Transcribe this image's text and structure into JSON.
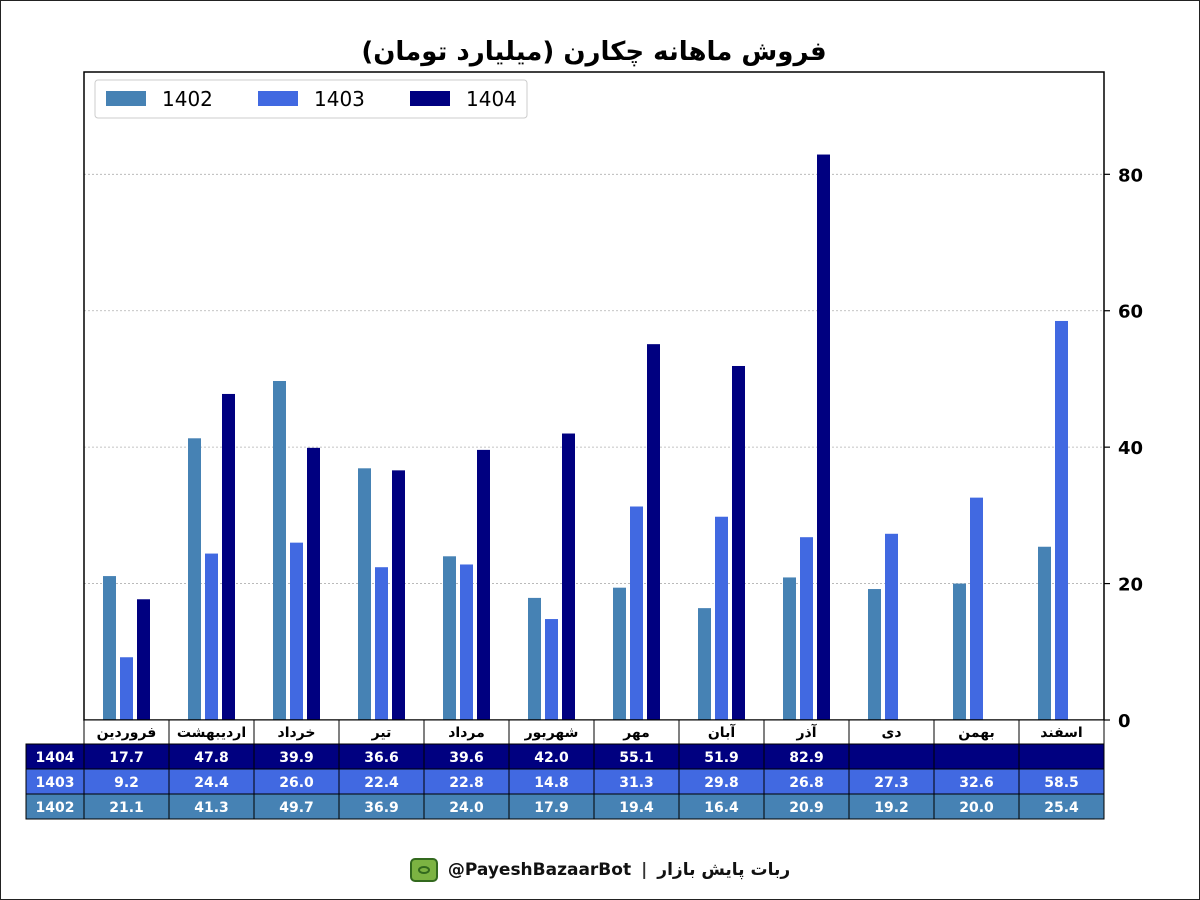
{
  "chart_data": {
    "type": "bar",
    "title": "فروش ماهانه چکارن (میلیارد تومان)",
    "categories": [
      "فروردین",
      "اردیبهشت",
      "خرداد",
      "تیر",
      "مرداد",
      "شهریور",
      "مهر",
      "آبان",
      "آذر",
      "دی",
      "بهمن",
      "اسفند"
    ],
    "series": [
      {
        "name": "1402",
        "color": "#4682b4",
        "values": [
          21.1,
          41.3,
          49.7,
          36.9,
          24.0,
          17.9,
          19.4,
          16.4,
          20.9,
          19.2,
          20.0,
          25.4
        ]
      },
      {
        "name": "1403",
        "color": "#4169e1",
        "values": [
          9.2,
          24.4,
          26.0,
          22.4,
          22.8,
          14.8,
          31.3,
          29.8,
          26.8,
          27.3,
          32.6,
          58.5
        ]
      },
      {
        "name": "1404",
        "color": "#000080",
        "values": [
          17.7,
          47.8,
          39.9,
          36.6,
          39.6,
          42.0,
          55.1,
          51.9,
          82.9,
          null,
          null,
          null
        ]
      }
    ],
    "y_ticks": [
      "0",
      "20",
      "40",
      "60",
      "80"
    ],
    "ylim": [
      0,
      95
    ],
    "y_axis_side": "right",
    "grid": true,
    "legend_position": "top-left",
    "table_row_order": [
      "1404",
      "1403",
      "1402"
    ]
  },
  "footer": {
    "bot_handle": "@PayeshBazaarBot",
    "separator": "|",
    "bot_name": "ربات پایش بازار"
  },
  "icons": {
    "bot": "bot-icon"
  }
}
